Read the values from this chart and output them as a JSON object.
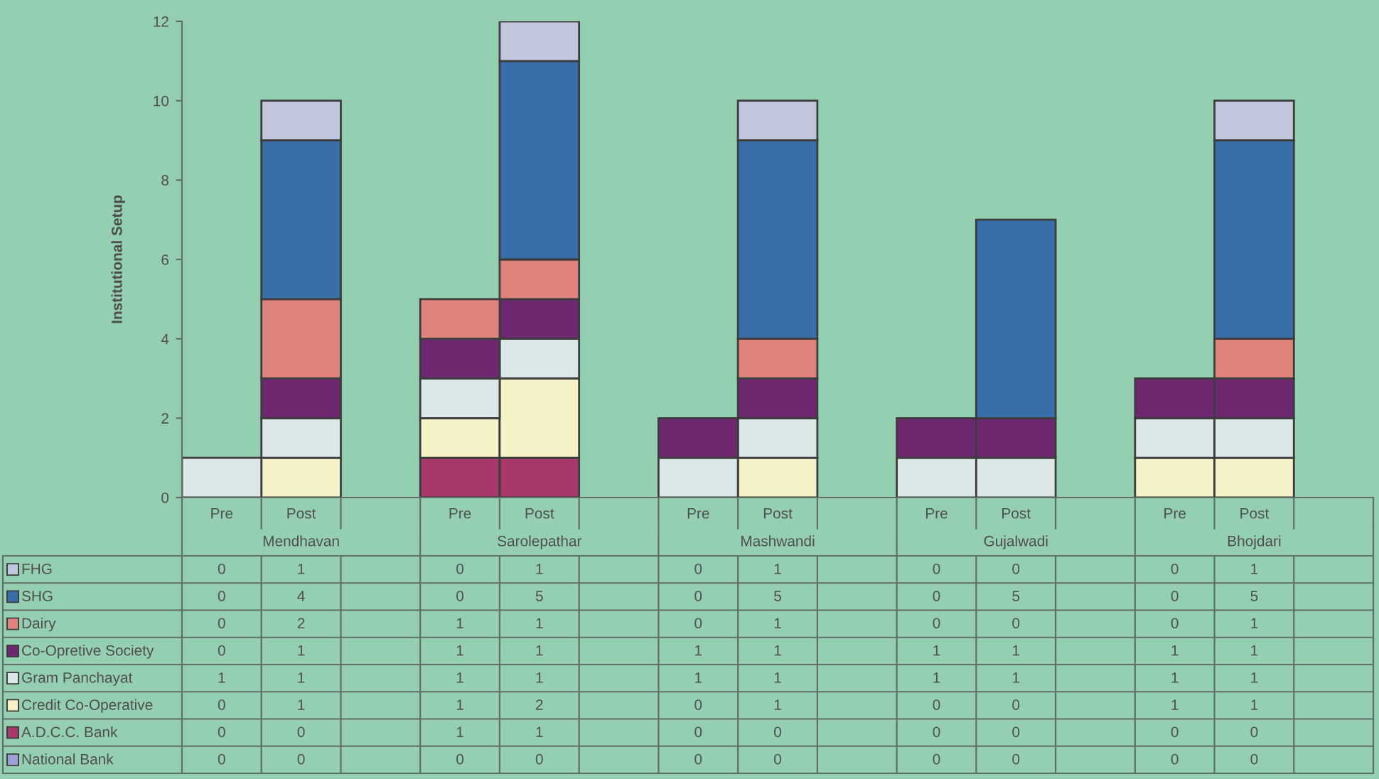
{
  "chart_data": {
    "type": "bar",
    "stacked": true,
    "ylabel": "Institutional Setup",
    "categories": [
      "Pre",
      "Post",
      null,
      "Pre",
      "Post",
      null,
      "Pre",
      "Post",
      null,
      "Pre",
      "Post",
      null,
      "Pre",
      "Post",
      null
    ],
    "annotations": [
      "Mendhavan",
      "Sarolepathar",
      "Mashwandi",
      "Gujalwadi",
      "Bhojdari"
    ],
    "series": [
      {
        "name": "National Bank",
        "color": "#9ca2d6",
        "values": [
          0,
          0,
          null,
          0,
          0,
          null,
          0,
          0,
          null,
          0,
          0,
          null,
          0,
          0,
          null
        ]
      },
      {
        "name": "A.D.C.C. Bank",
        "color": "#a8386c",
        "values": [
          0,
          0,
          null,
          1,
          1,
          null,
          0,
          0,
          null,
          0,
          0,
          null,
          0,
          0,
          null
        ]
      },
      {
        "name": "Credit Co-Operative",
        "color": "#f6f2c8",
        "values": [
          0,
          1,
          null,
          1,
          2,
          null,
          0,
          1,
          null,
          0,
          0,
          null,
          1,
          1,
          null
        ]
      },
      {
        "name": "Gram Panchayat",
        "color": "#dce8e8",
        "values": [
          1,
          1,
          null,
          1,
          1,
          null,
          1,
          1,
          null,
          1,
          1,
          null,
          1,
          1,
          null
        ]
      },
      {
        "name": "Co-Opretive Society",
        "color": "#6e2870",
        "values": [
          0,
          1,
          null,
          1,
          1,
          null,
          1,
          1,
          null,
          1,
          1,
          null,
          1,
          1,
          null
        ]
      },
      {
        "name": "Dairy",
        "color": "#e0837c",
        "values": [
          0,
          2,
          null,
          1,
          1,
          null,
          0,
          1,
          null,
          0,
          0,
          null,
          0,
          1,
          null
        ]
      },
      {
        "name": "SHG",
        "color": "#3a6ea8",
        "values": [
          0,
          4,
          null,
          0,
          5,
          null,
          0,
          5,
          null,
          0,
          5,
          null,
          0,
          5,
          null
        ]
      },
      {
        "name": "FHG",
        "color": "#c2c6dc",
        "values": [
          0,
          1,
          null,
          0,
          1,
          null,
          0,
          1,
          null,
          0,
          0,
          null,
          0,
          1,
          null
        ]
      }
    ],
    "ylim": [
      0,
      12
    ],
    "yticks": [
      0,
      2,
      4,
      6,
      8,
      10,
      12
    ],
    "data_labels": true,
    "legend": "bottom"
  }
}
